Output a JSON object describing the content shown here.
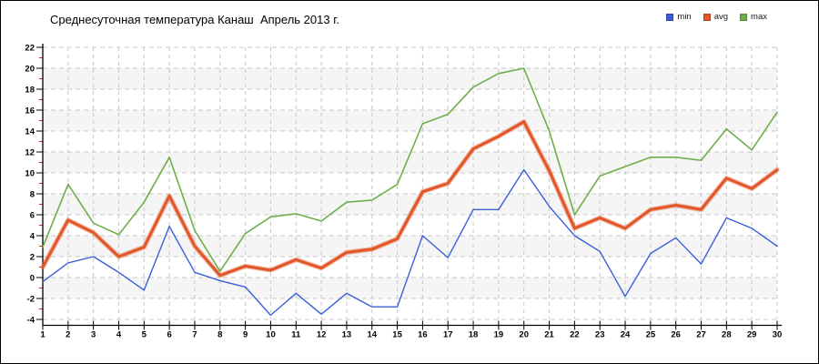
{
  "title": "Среднесуточная температура Канаш  Апрель 2013 г.",
  "chart_data": {
    "type": "line",
    "title": "Среднесуточная температура Канаш  Апрель 2013 г.",
    "x": [
      1,
      2,
      3,
      4,
      5,
      6,
      7,
      8,
      9,
      10,
      11,
      12,
      13,
      14,
      15,
      16,
      17,
      18,
      19,
      20,
      21,
      22,
      23,
      24,
      25,
      26,
      27,
      28,
      29,
      30
    ],
    "series": [
      {
        "name": "min",
        "color": "#3a5fd9",
        "values": [
          -0.4,
          1.4,
          2.0,
          0.5,
          -1.2,
          4.9,
          0.5,
          -0.3,
          -0.9,
          -3.6,
          -1.5,
          -3.5,
          -1.5,
          -2.8,
          -2.8,
          4.0,
          1.9,
          6.5,
          6.5,
          10.3,
          6.8,
          4.0,
          2.5,
          -1.8,
          2.3,
          3.8,
          1.3,
          5.7,
          4.7,
          3.0
        ]
      },
      {
        "name": "avg",
        "color": "#e2582a",
        "values": [
          1.0,
          5.5,
          4.3,
          2.0,
          2.9,
          7.8,
          3.0,
          0.2,
          1.1,
          0.7,
          1.7,
          0.9,
          2.4,
          2.7,
          3.7,
          8.2,
          9.0,
          12.3,
          13.5,
          14.9,
          10.2,
          4.7,
          5.7,
          4.7,
          6.5,
          6.9,
          6.5,
          9.5,
          8.5,
          10.3
        ]
      },
      {
        "name": "max",
        "color": "#6fae4b",
        "values": [
          2.9,
          8.9,
          5.2,
          4.1,
          7.2,
          11.5,
          4.5,
          0.6,
          4.2,
          5.8,
          6.1,
          5.4,
          7.2,
          7.4,
          8.9,
          14.7,
          15.6,
          18.2,
          19.5,
          20.0,
          14.0,
          6.0,
          9.7,
          10.6,
          11.5,
          11.5,
          11.2,
          14.2,
          12.2,
          15.8
        ]
      }
    ],
    "ylim": [
      -4,
      22
    ],
    "y_ticks": [
      22,
      20,
      18,
      16,
      14,
      12,
      10,
      8,
      6,
      4,
      2,
      0,
      -2,
      -4
    ],
    "xlabel": "",
    "ylabel": "",
    "grid": "dashed",
    "legend_position": "top-right"
  },
  "colors": {
    "grid": "#c8c8c8",
    "band": "#f5f5f5",
    "axis": "#000000",
    "minor_tick": "#cc2b20",
    "tick_label": "#000000"
  }
}
